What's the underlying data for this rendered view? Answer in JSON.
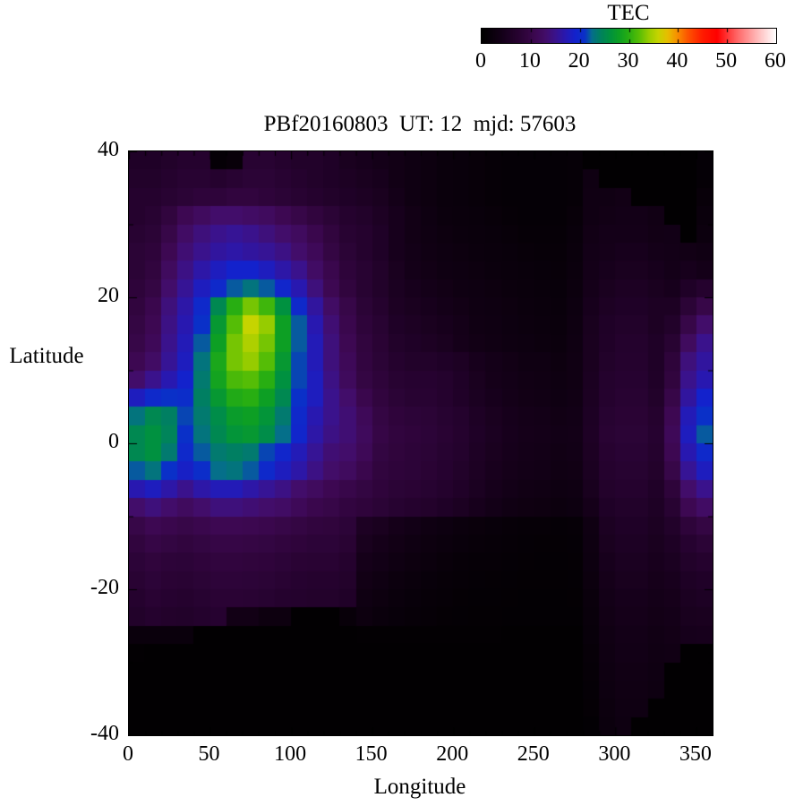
{
  "page": {
    "background": "#ffffff",
    "text_color": "#000000"
  },
  "colorbar": {
    "title": "TEC",
    "ticks": [
      0,
      10,
      20,
      30,
      40,
      50,
      60
    ],
    "min": 0,
    "max": 60
  },
  "plot": {
    "title": "PBf20160803  UT: 12  mjd: 57603",
    "xlabel": "Longitude",
    "ylabel": "Latitude",
    "xticks": [
      0,
      50,
      100,
      150,
      200,
      250,
      300,
      350
    ],
    "yticks": [
      40,
      20,
      0,
      -20,
      -40
    ],
    "x_minor_step": 10,
    "y_minor_step": 10,
    "xlim": [
      0,
      360
    ],
    "ylim": [
      -40,
      40
    ],
    "border_color": "#000000"
  },
  "chart_data": {
    "type": "heatmap",
    "title": "PBf20160803  UT: 12  mjd: 57603",
    "xlabel": "Longitude",
    "ylabel": "Latitude",
    "colorbar_label": "TEC",
    "xlim": [
      0,
      360
    ],
    "ylim": [
      -40,
      40
    ],
    "zlim": [
      0,
      60
    ],
    "lon_step": 10,
    "lat_step": 2.5,
    "rows_order": "latitude 40 (top) to -40 (bottom), 32 rows; 36 columns lon 0 to 360",
    "palette_stops": [
      [
        0,
        "#000000"
      ],
      [
        4,
        "#140018"
      ],
      [
        7,
        "#25022e"
      ],
      [
        9,
        "#31053e"
      ],
      [
        11,
        "#3d0852"
      ],
      [
        13,
        "#420d6a"
      ],
      [
        15,
        "#3a128c"
      ],
      [
        17,
        "#2818b0"
      ],
      [
        19,
        "#1322cc"
      ],
      [
        21,
        "#0a30c8"
      ],
      [
        22.5,
        "#056f8a"
      ],
      [
        24,
        "#007f62"
      ],
      [
        26,
        "#009140"
      ],
      [
        28,
        "#0d9f24"
      ],
      [
        30,
        "#28ae12"
      ],
      [
        32,
        "#55bd06"
      ],
      [
        34,
        "#96cc00"
      ],
      [
        36,
        "#c6d400"
      ],
      [
        38,
        "#e8bc00"
      ],
      [
        40,
        "#f88c00"
      ],
      [
        42,
        "#fd5500"
      ],
      [
        45,
        "#ff1c00"
      ],
      [
        48,
        "#ff0000"
      ],
      [
        52,
        "#ff6464"
      ],
      [
        56,
        "#ffb4b4"
      ],
      [
        60,
        "#ffffff"
      ]
    ],
    "values": [
      [
        6,
        6,
        6.5,
        7,
        7,
        1,
        1.5,
        7.5,
        7.5,
        7,
        6.5,
        6.5,
        6,
        5,
        4.5,
        4,
        3.5,
        3,
        2.5,
        2,
        1.8,
        1.5,
        1.2,
        1,
        1,
        1,
        1,
        1.2,
        0.3,
        0.3,
        0.3,
        0.3,
        0.3,
        0.3,
        0.3,
        1
      ],
      [
        6.5,
        6.5,
        7,
        7.5,
        7.5,
        7,
        7.5,
        8,
        8,
        7.5,
        7,
        6.5,
        6,
        5.5,
        5,
        4.5,
        3.5,
        3,
        2.5,
        2,
        1.8,
        1.5,
        1.2,
        1,
        1,
        1,
        1,
        1.2,
        3,
        0.3,
        0.3,
        0.3,
        0.3,
        0.3,
        0.3,
        1
      ],
      [
        7,
        7,
        7.5,
        8,
        8.5,
        8.5,
        9,
        9,
        8.5,
        8,
        7.5,
        7,
        6.5,
        6,
        5.5,
        5,
        4,
        3,
        2.5,
        2,
        1.8,
        1.5,
        1.2,
        1,
        1,
        1,
        1,
        1.2,
        3.2,
        3.2,
        3.5,
        0.3,
        0.3,
        0.3,
        0.3,
        1.5
      ],
      [
        7,
        7.5,
        9,
        11,
        12,
        13,
        13,
        12.5,
        12,
        11,
        10,
        9,
        8,
        7,
        6.5,
        5.5,
        4.5,
        3.5,
        2.8,
        2.2,
        2,
        1.8,
        1.5,
        1.2,
        1,
        1,
        1,
        1.5,
        3.2,
        3.5,
        3.8,
        3.8,
        3.3,
        0.3,
        0.3,
        2
      ],
      [
        7.5,
        8,
        10,
        12.5,
        14,
        15,
        15.5,
        15,
        14,
        13,
        12,
        10.5,
        9,
        7.5,
        7,
        6,
        4.5,
        3.5,
        3,
        2.5,
        2.2,
        2,
        1.8,
        1.5,
        1.2,
        1.2,
        1.2,
        1.8,
        3.5,
        4,
        4,
        4,
        3.5,
        3.6,
        0.4,
        2.4
      ],
      [
        8,
        8.5,
        11,
        13.5,
        15,
        16,
        16.5,
        16,
        15.5,
        14.5,
        13,
        11.5,
        9.5,
        8,
        7,
        6,
        4.5,
        3.8,
        3.2,
        2.8,
        2.5,
        2.2,
        2,
        1.8,
        1.5,
        1.4,
        1.4,
        2,
        3.8,
        4.2,
        4.5,
        4.5,
        4,
        3.8,
        3.5,
        3.2
      ],
      [
        8,
        9,
        12,
        14.5,
        16.5,
        18,
        19,
        19,
        18,
        16.5,
        15,
        12.5,
        10.5,
        8.5,
        7.5,
        6.5,
        5,
        4,
        3.5,
        3,
        2.8,
        2.5,
        2.2,
        2,
        1.8,
        1.6,
        1.5,
        2.2,
        4,
        4.5,
        5,
        5,
        4.5,
        4,
        4.5,
        4
      ],
      [
        8.5,
        9.5,
        13,
        15.5,
        18,
        20,
        22,
        23,
        22,
        19.5,
        17,
        14,
        11,
        9,
        7.5,
        6.5,
        5.2,
        4.5,
        4,
        3.5,
        3,
        2.8,
        2.5,
        2.2,
        2,
        1.8,
        1.6,
        2.4,
        4.2,
        5,
        5.5,
        5.5,
        5,
        4.5,
        6,
        7
      ],
      [
        9,
        10.5,
        14,
        16.5,
        20,
        25,
        30,
        33,
        31,
        26,
        20,
        16,
        12.5,
        10,
        8,
        7,
        5.5,
        5,
        4.5,
        4,
        3.5,
        3,
        2.8,
        2.5,
        2.2,
        2,
        1.8,
        2.6,
        4.5,
        5.5,
        6,
        6,
        5.5,
        5.5,
        8,
        10
      ],
      [
        9.5,
        11,
        14.5,
        17,
        21,
        27,
        32,
        36,
        34,
        28,
        22,
        17,
        13.5,
        10.5,
        8.5,
        7.5,
        6,
        5.5,
        5,
        4.5,
        4,
        3.2,
        3,
        2.6,
        2.4,
        2.2,
        2,
        2.8,
        4.8,
        6,
        6.5,
        6.5,
        5.5,
        6.5,
        10,
        13
      ],
      [
        10,
        11.5,
        15,
        17.5,
        22,
        28,
        33,
        35,
        33,
        28,
        22,
        17.5,
        14,
        11,
        9,
        7.8,
        6.5,
        6,
        5.5,
        5,
        4.2,
        3.5,
        3.2,
        2.8,
        2.6,
        2.4,
        2.2,
        3,
        5,
        6.2,
        6.8,
        6.8,
        6,
        7.5,
        12,
        15
      ],
      [
        11,
        12.5,
        15.5,
        18,
        23,
        29,
        33,
        34,
        32,
        27,
        21.5,
        17.5,
        14,
        11.5,
        9.2,
        8,
        7,
        6.5,
        6.5,
        6,
        5.5,
        4.5,
        4,
        3.5,
        3,
        3,
        2.5,
        3.2,
        5,
        6.5,
        7,
        7,
        6,
        8.5,
        14,
        16
      ],
      [
        13,
        15,
        17,
        19,
        23.5,
        28.5,
        31.5,
        32,
        30,
        26,
        21.5,
        18,
        14.5,
        11.8,
        9.5,
        8.5,
        7.5,
        7.2,
        7.2,
        6.8,
        6,
        5,
        4.2,
        3.8,
        3.4,
        3.2,
        2.8,
        3.2,
        5.2,
        6.8,
        7.2,
        7.2,
        6.2,
        9,
        15,
        17
      ],
      [
        18,
        20,
        21,
        20.5,
        24,
        27,
        29.5,
        30,
        28,
        25,
        21,
        18,
        15,
        13,
        10.5,
        9,
        8,
        7.5,
        7.5,
        7,
        6.2,
        5.2,
        4.5,
        4,
        3.5,
        3.4,
        3,
        3.4,
        5.4,
        7,
        7.5,
        7.5,
        6.5,
        10,
        16,
        19
      ],
      [
        23,
        25,
        24,
        21.5,
        23.5,
        25.5,
        27.5,
        28,
        26.5,
        23.5,
        20,
        17,
        15,
        13.5,
        11.5,
        9.5,
        8.6,
        8.2,
        8,
        7.4,
        6.8,
        5.8,
        5,
        4.4,
        4,
        3.8,
        3.4,
        3.6,
        5.6,
        7.4,
        7.8,
        7.8,
        7,
        11,
        17.5,
        21
      ],
      [
        25,
        26,
        24.5,
        21,
        23,
        25,
        26.5,
        27,
        25.5,
        22.5,
        19.5,
        16.5,
        14.5,
        13.5,
        11.8,
        9.8,
        9,
        8.6,
        8.2,
        7.6,
        7,
        6,
        5.2,
        4.6,
        4.2,
        4,
        3.6,
        3.8,
        5.8,
        7.6,
        8,
        8,
        7.2,
        11.5,
        18,
        22
      ],
      [
        25,
        26,
        23.5,
        20,
        22,
        23.5,
        24,
        23.5,
        21.5,
        19.5,
        17.5,
        15.5,
        13.5,
        13,
        11.4,
        9.4,
        8.8,
        8.4,
        8,
        7.4,
        6.8,
        5.8,
        5,
        4.4,
        4,
        3.8,
        3.4,
        3.6,
        5.5,
        7.3,
        7.7,
        7.7,
        7,
        11,
        17,
        20
      ],
      [
        22,
        23,
        21,
        18.5,
        20.5,
        22.5,
        23,
        22,
        20,
        18,
        16.5,
        14.5,
        12.8,
        12,
        10.5,
        9,
        8.5,
        8.2,
        7.8,
        7.2,
        6.5,
        5.5,
        4.7,
        4.2,
        3.8,
        3.6,
        3.2,
        3.4,
        5.2,
        7,
        7.4,
        7.4,
        6.6,
        10,
        15.5,
        18
      ],
      [
        17,
        18,
        16.5,
        15,
        16.5,
        17.5,
        17.5,
        16.5,
        15.5,
        14.5,
        13,
        12,
        11,
        10.2,
        9.4,
        8.6,
        8,
        7.8,
        7.4,
        6.8,
        6.2,
        5.2,
        4.4,
        3.8,
        3.4,
        3.2,
        2.8,
        3,
        4.8,
        6.6,
        7,
        7,
        6.2,
        8.5,
        13,
        15
      ],
      [
        13,
        14,
        13,
        12,
        13,
        14,
        14,
        13.5,
        13,
        12.5,
        11.5,
        10.5,
        10,
        9.2,
        8.6,
        8,
        7.4,
        7,
        6.6,
        6,
        5.4,
        4.6,
        3.8,
        3.2,
        2.9,
        2.7,
        2.4,
        2.6,
        4.2,
        6,
        6.5,
        6.5,
        5.8,
        7.5,
        11,
        12.5
      ],
      [
        10,
        11,
        10.5,
        10,
        10.5,
        11,
        11,
        10.8,
        10.5,
        10,
        9.5,
        9,
        8.8,
        8.2,
        5.5,
        5,
        4.2,
        3.6,
        3,
        2.6,
        2.2,
        1.9,
        1.6,
        1.4,
        1.2,
        1.1,
        1,
        1.1,
        3,
        5.4,
        6,
        6,
        5.4,
        6.5,
        8.5,
        9.5
      ],
      [
        9,
        9.8,
        9.4,
        9,
        9.4,
        9.8,
        9.8,
        9.6,
        9.4,
        9,
        8.6,
        8.2,
        8.2,
        7.6,
        4.8,
        4.2,
        3.5,
        3,
        2.5,
        2.1,
        1.8,
        1.5,
        1.3,
        1.1,
        1,
        0.9,
        0.9,
        1,
        2.8,
        5,
        5.6,
        5.6,
        5,
        5.8,
        7.2,
        8
      ],
      [
        8.2,
        8.8,
        8.4,
        8.2,
        8.6,
        9,
        9,
        8.8,
        8.6,
        8.2,
        7.8,
        7.6,
        7.6,
        7,
        4.2,
        3.6,
        3,
        2.5,
        2.1,
        1.7,
        1.4,
        1.2,
        1.1,
        1,
        0.9,
        0.8,
        0.8,
        0.9,
        2.6,
        4.6,
        5.2,
        5.2,
        4.7,
        5.2,
        6.4,
        7
      ],
      [
        7.6,
        8.2,
        7.8,
        7.6,
        8,
        8.4,
        8.4,
        8.2,
        8,
        7.6,
        7.2,
        7,
        7,
        6.6,
        3.5,
        3,
        2.4,
        2,
        1.6,
        1.3,
        1.1,
        1,
        0.9,
        0.8,
        0.7,
        0.7,
        0.7,
        0.8,
        2.4,
        4.2,
        4.8,
        4.8,
        4.3,
        4.7,
        5.8,
        6.2
      ],
      [
        7,
        7.6,
        7.2,
        7,
        7.4,
        7.8,
        7.8,
        7.6,
        7.4,
        7,
        6.8,
        6.6,
        6.6,
        6.2,
        3,
        2.5,
        2,
        1.6,
        1.3,
        1.1,
        0.9,
        0.8,
        0.8,
        0.7,
        0.6,
        0.6,
        0.6,
        0.7,
        2,
        3.8,
        4.4,
        4.4,
        4,
        4.3,
        5.2,
        5.6
      ],
      [
        6.4,
        7,
        6.6,
        6.4,
        6.8,
        7.2,
        3.5,
        3.5,
        2.5,
        2.5,
        0.4,
        0.4,
        0.4,
        1.5,
        2.5,
        2,
        1.6,
        1.3,
        1.1,
        0.9,
        0.8,
        0.7,
        0.7,
        0.6,
        0.6,
        0.6,
        0.6,
        0.6,
        1.8,
        3.5,
        4.1,
        4.1,
        3.7,
        4,
        4.8,
        5
      ],
      [
        2,
        2,
        2,
        2,
        0.4,
        0.4,
        0.4,
        0.4,
        0.4,
        0.4,
        0.4,
        0.4,
        0.4,
        0.4,
        0.5,
        0.5,
        0.5,
        0.5,
        0.5,
        0.5,
        0.5,
        0.5,
        0.5,
        0.4,
        0.4,
        0.4,
        0.4,
        0.4,
        1.6,
        3.2,
        3.8,
        3.8,
        3.4,
        3.7,
        4.4,
        4.6
      ],
      [
        0.5,
        0.4,
        0.4,
        0.4,
        0.4,
        0.3,
        0.3,
        0.3,
        0.3,
        0.3,
        0.3,
        0.3,
        0.3,
        0.3,
        0.4,
        0.4,
        0.4,
        0.4,
        0.4,
        0.4,
        0.4,
        0.4,
        0.4,
        0.3,
        0.3,
        0.3,
        0.3,
        0.3,
        1.4,
        3,
        3.6,
        3.6,
        3.2,
        3.4,
        0.4,
        0.4
      ],
      [
        0.4,
        0.4,
        0.3,
        0.3,
        0.3,
        0.3,
        0.3,
        0.3,
        0.3,
        0.3,
        0.3,
        0.3,
        0.3,
        0.3,
        0.3,
        0.3,
        0.3,
        0.3,
        0.3,
        0.3,
        0.3,
        0.3,
        0.3,
        0.3,
        0.3,
        0.3,
        0.3,
        0.3,
        1.2,
        2.8,
        3.4,
        3.4,
        3,
        0.4,
        0.4,
        0.4
      ],
      [
        0.4,
        0.3,
        0.3,
        0.3,
        0.3,
        0.3,
        0.3,
        0.3,
        0.3,
        0.3,
        0.3,
        0.3,
        0.3,
        0.3,
        0.3,
        0.3,
        0.3,
        0.3,
        0.3,
        0.3,
        0.3,
        0.3,
        0.3,
        0.3,
        0.3,
        0.3,
        0.3,
        0.3,
        1,
        2.6,
        3.2,
        3.2,
        2.8,
        0.4,
        0.4,
        0.4
      ],
      [
        0.3,
        0.3,
        0.3,
        0.3,
        0.3,
        0.3,
        0.3,
        0.3,
        0.3,
        0.3,
        0.3,
        0.3,
        0.3,
        0.3,
        0.3,
        0.3,
        0.3,
        0.3,
        0.3,
        0.3,
        0.3,
        0.3,
        0.3,
        0.3,
        0.3,
        0.3,
        0.3,
        0.3,
        0.9,
        2.4,
        3,
        3,
        0.4,
        0.4,
        0.4,
        0.4
      ],
      [
        0.3,
        0.3,
        0.3,
        0.3,
        0.3,
        0.3,
        0.3,
        0.3,
        0.3,
        0.3,
        0.3,
        0.3,
        0.3,
        0.3,
        0.3,
        0.3,
        0.3,
        0.3,
        0.3,
        0.3,
        0.3,
        0.3,
        0.3,
        0.3,
        0.3,
        0.3,
        0.3,
        0.3,
        0.6,
        2.2,
        2.8,
        0.4,
        0.4,
        0.4,
        0.4,
        0.4
      ]
    ]
  }
}
